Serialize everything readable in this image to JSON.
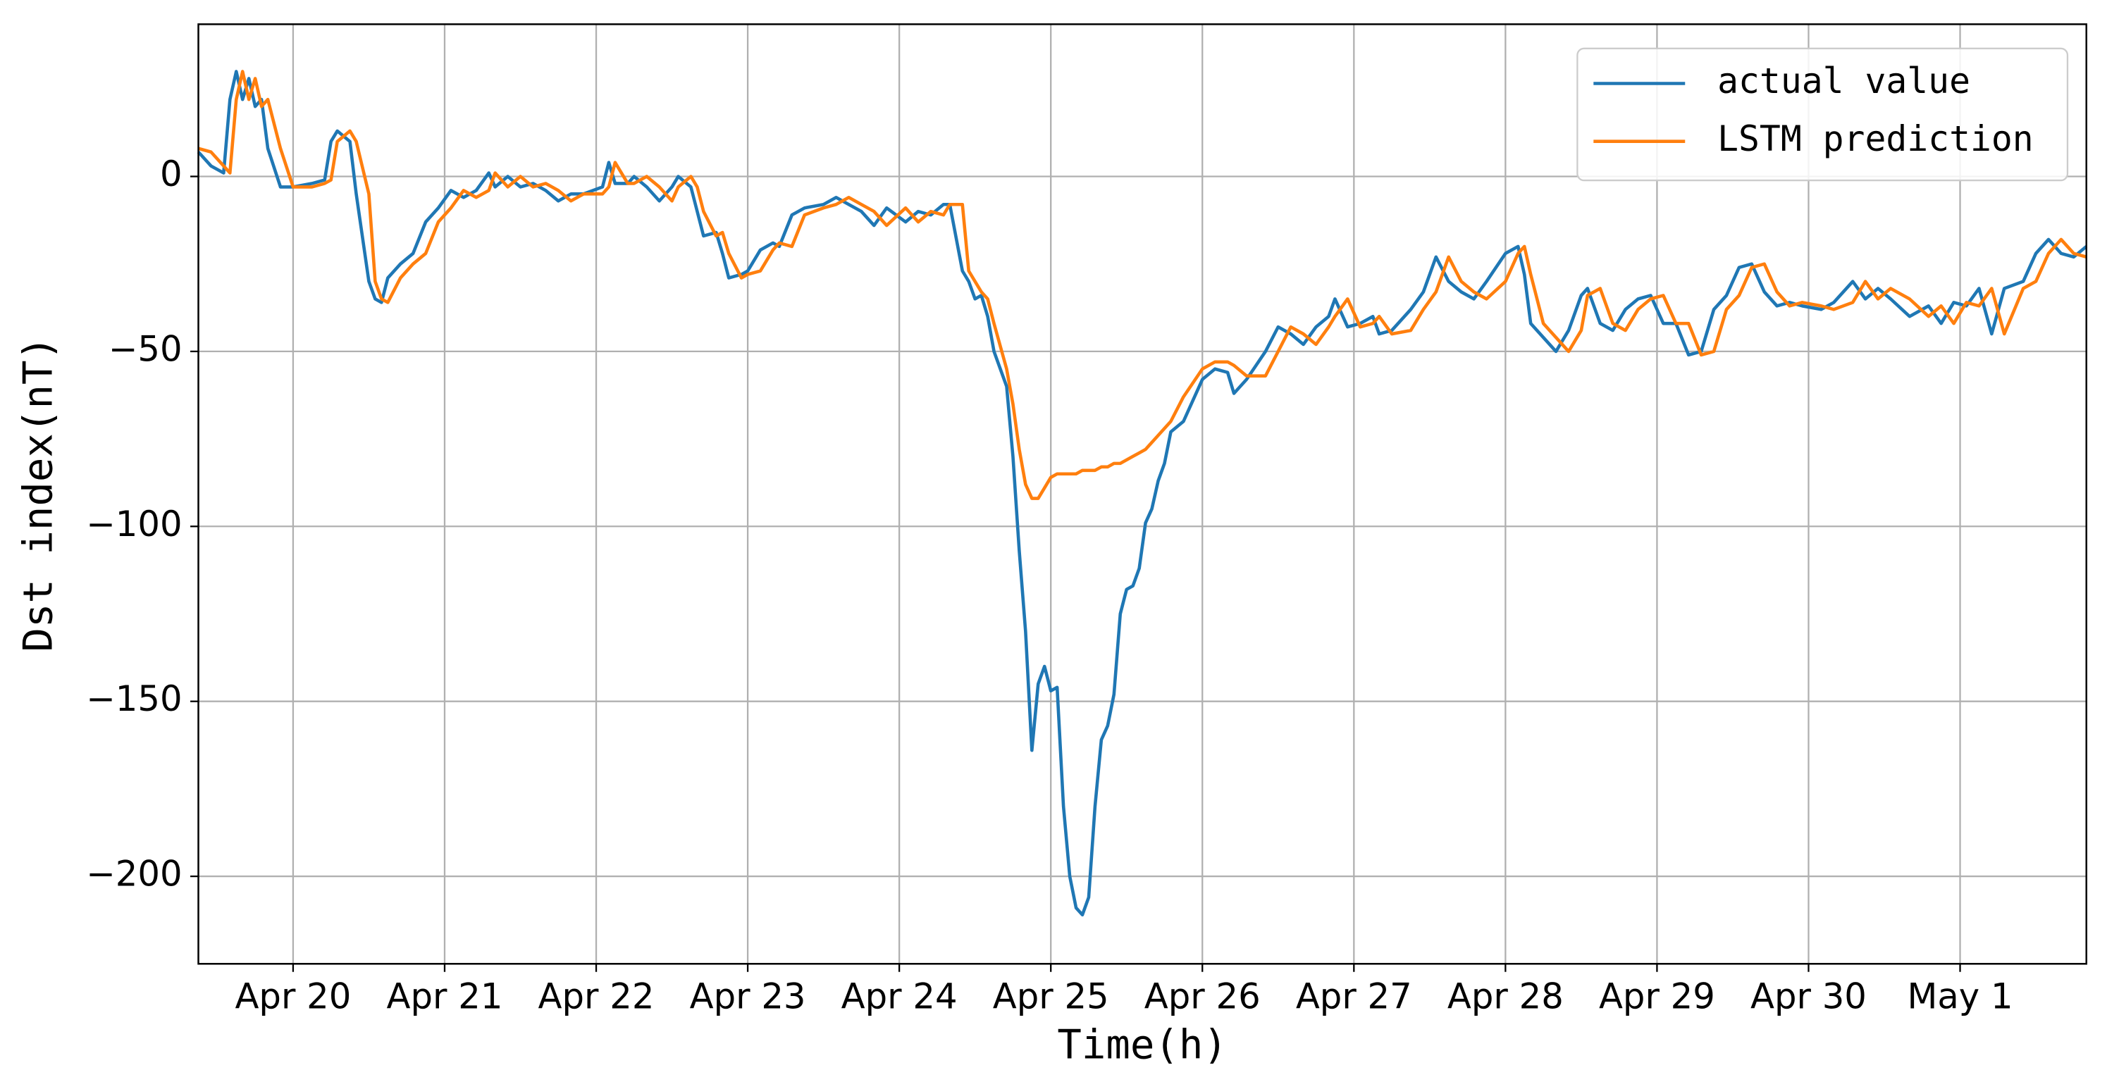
{
  "chart_data": {
    "type": "line",
    "x_label": "Time(h)",
    "y_label": "Dst index(nT)",
    "xlim": [
      -15,
      284
    ],
    "ylim": [
      -225,
      43.5
    ],
    "xticks": [
      {
        "value": 0,
        "label": "Apr 20"
      },
      {
        "value": 24,
        "label": "Apr 21"
      },
      {
        "value": 48,
        "label": "Apr 22"
      },
      {
        "value": 72,
        "label": "Apr 23"
      },
      {
        "value": 96,
        "label": "Apr 24"
      },
      {
        "value": 120,
        "label": "Apr 25"
      },
      {
        "value": 144,
        "label": "Apr 26"
      },
      {
        "value": 168,
        "label": "Apr 27"
      },
      {
        "value": 192,
        "label": "Apr 28"
      },
      {
        "value": 216,
        "label": "Apr 29"
      },
      {
        "value": 240,
        "label": "Apr 30"
      },
      {
        "value": 264,
        "label": "May 1"
      }
    ],
    "yticks": [
      {
        "value": 0,
        "label": "0"
      },
      {
        "value": -50,
        "label": "−50"
      },
      {
        "value": -100,
        "label": "−100"
      },
      {
        "value": -150,
        "label": "−150"
      },
      {
        "value": -200,
        "label": "−200"
      }
    ],
    "grid": true,
    "legend": "upper right",
    "x": [
      -15,
      -13,
      -11,
      -10,
      -9,
      -8,
      -7,
      -6,
      -5,
      -4,
      -2,
      0,
      3,
      5,
      6,
      7,
      9,
      10,
      12,
      13,
      14,
      15,
      17,
      19,
      21,
      23,
      25,
      27,
      29,
      31,
      32,
      34,
      36,
      38,
      40,
      42,
      44,
      46,
      49,
      50,
      51,
      53,
      54,
      56,
      58,
      60,
      61,
      63,
      64,
      65,
      67,
      68,
      69,
      71,
      72,
      74,
      76,
      77,
      79,
      81,
      84,
      86,
      88,
      90,
      92,
      94,
      97,
      99,
      101,
      103,
      104,
      106,
      107,
      108,
      109,
      110,
      111,
      113,
      114,
      115,
      116,
      117,
      118,
      119,
      120,
      121,
      122,
      123,
      124,
      125,
      126,
      127,
      128,
      129,
      130,
      131,
      132,
      133,
      134,
      135,
      136,
      137,
      138,
      139,
      141,
      144,
      146,
      148,
      149,
      151,
      154,
      156,
      158,
      160,
      162,
      164,
      165,
      167,
      169,
      171,
      172,
      174,
      177,
      179,
      181,
      183,
      185,
      187,
      189,
      192,
      194,
      195,
      196,
      198,
      200,
      202,
      204,
      205,
      207,
      209,
      211,
      213,
      215,
      217,
      219,
      221,
      223,
      225,
      227,
      229,
      231,
      233,
      235,
      237,
      239,
      242,
      244,
      247,
      249,
      251,
      253,
      256,
      259,
      261,
      263,
      265,
      267,
      269,
      271,
      274,
      276,
      278,
      280,
      282,
      284
    ],
    "series": [
      {
        "name": "actual value",
        "color": "#1f77b4",
        "values": [
          7,
          3,
          1,
          22,
          30,
          22,
          28,
          20,
          22,
          8,
          -3,
          -3,
          -2,
          -1,
          10,
          13,
          10,
          -5,
          -30,
          -35,
          -36,
          -29,
          -25,
          -22,
          -13,
          -9,
          -4,
          -6,
          -4,
          1,
          -3,
          0,
          -3,
          -2,
          -4,
          -7,
          -5,
          -5,
          -3,
          4,
          -2,
          -2,
          0,
          -3,
          -7,
          -3,
          0,
          -3,
          -10,
          -17,
          -16,
          -22,
          -29,
          -28,
          -27,
          -21,
          -19,
          -20,
          -11,
          -9,
          -8,
          -6,
          -8,
          -10,
          -14,
          -9,
          -13,
          -10,
          -11,
          -8,
          -8,
          -27,
          -30,
          -35,
          -34,
          -40,
          -50,
          -60,
          -80,
          -107,
          -130,
          -164,
          -145,
          -140,
          -147,
          -146,
          -180,
          -200,
          -209,
          -211,
          -206,
          -180,
          -161,
          -157,
          -148,
          -125,
          -118,
          -117,
          -112,
          -99,
          -95,
          -87,
          -82,
          -73,
          -70,
          -58,
          -55,
          -56,
          -62,
          -58,
          -50,
          -43,
          -45,
          -48,
          -43,
          -40,
          -35,
          -43,
          -42,
          -40,
          -45,
          -44,
          -38,
          -33,
          -23,
          -30,
          -33,
          -35,
          -30,
          -22,
          -20,
          -28,
          -42,
          -46,
          -50,
          -44,
          -34,
          -32,
          -42,
          -44,
          -38,
          -35,
          -34,
          -42,
          -42,
          -51,
          -50,
          -38,
          -34,
          -26,
          -25,
          -33,
          -37,
          -36,
          -37,
          -38,
          -36,
          -30,
          -35,
          -32,
          -35,
          -40,
          -37,
          -42,
          -36,
          -37,
          -32,
          -45,
          -32,
          -30,
          -22,
          -18,
          -22,
          -23,
          -20
        ]
      },
      {
        "name": "LSTM prediction",
        "color": "#ff7f0e",
        "values": [
          8,
          7,
          3,
          1,
          22,
          30,
          22,
          28,
          20,
          22,
          8,
          -3,
          -3,
          -2,
          -1,
          10,
          13,
          10,
          -5,
          -30,
          -35,
          -36,
          -29,
          -25,
          -22,
          -13,
          -9,
          -4,
          -6,
          -4,
          1,
          -3,
          0,
          -3,
          -2,
          -4,
          -7,
          -5,
          -5,
          -3,
          4,
          -2,
          -2,
          0,
          -3,
          -7,
          -3,
          0,
          -3,
          -10,
          -17,
          -16,
          -22,
          -29,
          -28,
          -27,
          -21,
          -19,
          -20,
          -11,
          -9,
          -8,
          -6,
          -8,
          -10,
          -14,
          -9,
          -13,
          -10,
          -11,
          -8,
          -8,
          -27,
          -30,
          -33,
          -35,
          -42,
          -55,
          -65,
          -78,
          -88,
          -92,
          -92,
          -89,
          -86,
          -85,
          -85,
          -85,
          -85,
          -84,
          -84,
          -84,
          -83,
          -83,
          -82,
          -82,
          -81,
          -80,
          -79,
          -78,
          -76,
          -74,
          -72,
          -70,
          -63,
          -55,
          -53,
          -53,
          -54,
          -57,
          -57,
          -50,
          -43,
          -45,
          -48,
          -43,
          -40,
          -35,
          -43,
          -42,
          -40,
          -45,
          -44,
          -38,
          -33,
          -23,
          -30,
          -33,
          -35,
          -30,
          -22,
          -20,
          -28,
          -42,
          -46,
          -50,
          -44,
          -34,
          -32,
          -42,
          -44,
          -38,
          -35,
          -34,
          -42,
          -42,
          -51,
          -50,
          -38,
          -34,
          -26,
          -25,
          -33,
          -37,
          -36,
          -37,
          -38,
          -36,
          -30,
          -35,
          -32,
          -35,
          -40,
          -37,
          -42,
          -36,
          -37,
          -32,
          -45,
          -32,
          -30,
          -22,
          -18,
          -22,
          -23
        ]
      }
    ]
  }
}
